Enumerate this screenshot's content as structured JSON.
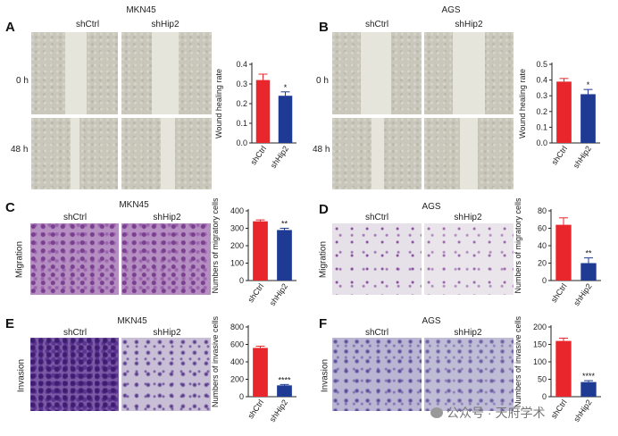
{
  "panels": [
    {
      "letter": "A",
      "title": "MKN45",
      "cols": [
        "shCtrl",
        "shHip2"
      ],
      "rows": [
        "0 h",
        "48 h"
      ]
    },
    {
      "letter": "B",
      "title": "AGS",
      "cols": [
        "shCtrl",
        "shHip2"
      ],
      "rows": [
        "0 h",
        "48 h"
      ]
    },
    {
      "letter": "C",
      "title": "MKN45",
      "cols": [
        "shCtrl",
        "shHip2"
      ],
      "rows": [
        "Migration"
      ]
    },
    {
      "letter": "D",
      "title": "AGS",
      "cols": [
        "shCtrl",
        "shHip2"
      ],
      "rows": [
        "Migration"
      ]
    },
    {
      "letter": "E",
      "title": "MKN45",
      "cols": [
        "shCtrl",
        "shHip2"
      ],
      "rows": [
        "Invasion"
      ]
    },
    {
      "letter": "F",
      "title": "AGS",
      "cols": [
        "shCtrl",
        "shHip2"
      ],
      "rows": [
        "Invasion"
      ]
    }
  ],
  "watermark": "公众号 · 天府学术",
  "chart_data": [
    {
      "panel": "A",
      "type": "bar",
      "categories": [
        "shCtrl",
        "shHip2"
      ],
      "values": [
        0.32,
        0.24
      ],
      "errors": [
        0.03,
        0.02
      ],
      "ylabel": "Wound healing rate",
      "ylim": [
        0,
        0.4
      ],
      "yticks": [
        "0.0",
        "0.1",
        "0.2",
        "0.3",
        "0.4"
      ],
      "yticks_values": [
        0,
        0.1,
        0.2,
        0.3,
        0.4
      ],
      "significance": [
        "",
        "*"
      ],
      "colors": [
        "#e8262b",
        "#1f3a93"
      ]
    },
    {
      "panel": "B",
      "type": "bar",
      "categories": [
        "shCtrl",
        "shHip2"
      ],
      "values": [
        0.39,
        0.31
      ],
      "errors": [
        0.02,
        0.03
      ],
      "ylabel": "Wound healing rate",
      "ylim": [
        0,
        0.5
      ],
      "yticks": [
        "0.0",
        "0.1",
        "0.2",
        "0.3",
        "0.4",
        "0.5"
      ],
      "yticks_values": [
        0,
        0.1,
        0.2,
        0.3,
        0.4,
        0.5
      ],
      "significance": [
        "",
        "*"
      ],
      "colors": [
        "#e8262b",
        "#1f3a93"
      ]
    },
    {
      "panel": "C",
      "type": "bar",
      "categories": [
        "shCtrl",
        "shHip2"
      ],
      "values": [
        340,
        290
      ],
      "errors": [
        8,
        10
      ],
      "ylabel": "Numbers of migratory cells",
      "ylim": [
        0,
        400
      ],
      "yticks": [
        "0",
        "100",
        "200",
        "300",
        "400"
      ],
      "yticks_values": [
        0,
        100,
        200,
        300,
        400
      ],
      "significance": [
        "",
        "**"
      ],
      "colors": [
        "#e8262b",
        "#1f3a93"
      ]
    },
    {
      "panel": "D",
      "type": "bar",
      "categories": [
        "shCtrl",
        "shHip2"
      ],
      "values": [
        64,
        20
      ],
      "errors": [
        8,
        6
      ],
      "ylabel": "Numbers of migratory cells",
      "ylim": [
        0,
        80
      ],
      "yticks": [
        "0",
        "20",
        "40",
        "60",
        "80"
      ],
      "yticks_values": [
        0,
        20,
        40,
        60,
        80
      ],
      "significance": [
        "",
        "**"
      ],
      "colors": [
        "#e8262b",
        "#1f3a93"
      ]
    },
    {
      "panel": "E",
      "type": "bar",
      "categories": [
        "shCtrl",
        "shHip2"
      ],
      "values": [
        560,
        130
      ],
      "errors": [
        20,
        10
      ],
      "ylabel": "Numbers of invasive cells",
      "ylim": [
        0,
        800
      ],
      "yticks": [
        "0",
        "200",
        "400",
        "600",
        "800"
      ],
      "yticks_values": [
        0,
        200,
        400,
        600,
        800
      ],
      "significance": [
        "",
        "****"
      ],
      "colors": [
        "#e8262b",
        "#1f3a93"
      ]
    },
    {
      "panel": "F",
      "type": "bar",
      "categories": [
        "shCtrl",
        "shHip2"
      ],
      "values": [
        160,
        42
      ],
      "errors": [
        8,
        4
      ],
      "ylabel": "Numbers of invasive cells",
      "ylim": [
        0,
        200
      ],
      "yticks": [
        "0",
        "50",
        "100",
        "150",
        "200"
      ],
      "yticks_values": [
        0,
        50,
        100,
        150,
        200
      ],
      "significance": [
        "",
        "****"
      ],
      "colors": [
        "#e8262b",
        "#1f3a93"
      ]
    }
  ]
}
